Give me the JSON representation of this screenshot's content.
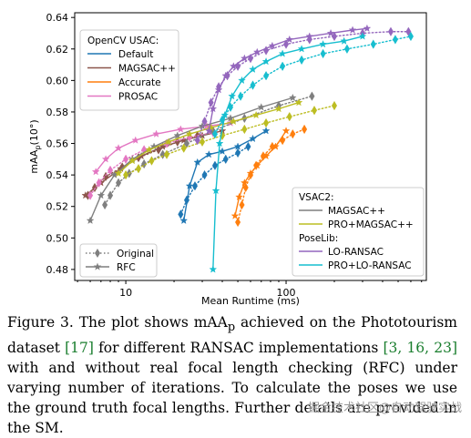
{
  "chart_data": {
    "type": "line",
    "title": "",
    "xlabel": "Mean Runtime (ms)",
    "ylabel": "mAA",
    "ylabel_sub": "p",
    "ylabel_suffix": "(10°)",
    "xscale": "log",
    "xlim": [
      4.8,
      750
    ],
    "ylim": [
      0.473,
      0.643
    ],
    "x_ticks": [
      10,
      100
    ],
    "x_tick_labels": [
      "10",
      "100"
    ],
    "y_ticks": [
      0.48,
      0.5,
      0.52,
      0.54,
      0.56,
      0.58,
      0.6,
      0.62,
      0.64
    ],
    "y_tick_labels": [
      "0.48",
      "0.50",
      "0.52",
      "0.54",
      "0.56",
      "0.58",
      "0.60",
      "0.62",
      "0.64"
    ],
    "grid": false,
    "legends": [
      {
        "placement": "top-left",
        "title": "OpenCV USAC:",
        "entries": [
          {
            "label": "Default",
            "color": "#1f77b4"
          },
          {
            "label": "MAGSAC++",
            "color": "#8c564b"
          },
          {
            "label": "Accurate",
            "color": "#ff7f0e"
          },
          {
            "label": "PROSAC",
            "color": "#e377c2"
          }
        ]
      },
      {
        "placement": "bottom-right",
        "groups": [
          {
            "title": "VSAC2:",
            "entries": [
              {
                "label": "MAGSAC++",
                "color": "#7f7f7f"
              },
              {
                "label": "PRO+MAGSAC++",
                "color": "#bcbd22"
              }
            ]
          },
          {
            "title": "PoseLib:",
            "entries": [
              {
                "label": "LO-RANSAC",
                "color": "#9467bd"
              },
              {
                "label": "PRO+LO-RANSAC",
                "color": "#17becf"
              }
            ]
          }
        ]
      },
      {
        "placement": "bottom-left",
        "entries": [
          {
            "label": "Original",
            "marker": "diamond",
            "dash": "dotted"
          },
          {
            "label": "RFC",
            "marker": "star",
            "dash": "solid"
          }
        ]
      }
    ],
    "series": [
      {
        "name": "Default",
        "variant": "Original",
        "color": "#1f77b4",
        "x": [
          22,
          24,
          27,
          31,
          36,
          42,
          50,
          58
        ],
        "y": [
          0.515,
          0.524,
          0.533,
          0.54,
          0.546,
          0.55,
          0.554,
          0.558
        ]
      },
      {
        "name": "Default",
        "variant": "RFC",
        "color": "#1f77b4",
        "x": [
          23,
          25,
          28,
          33,
          40,
          50,
          62,
          75
        ],
        "y": [
          0.511,
          0.533,
          0.548,
          0.553,
          0.555,
          0.558,
          0.563,
          0.568
        ]
      },
      {
        "name": "MAGSAC++",
        "variant": "Original",
        "color": "#8c564b",
        "x": [
          5.8,
          6.4,
          7.5,
          9.5,
          12,
          16,
          21,
          28
        ],
        "y": [
          0.527,
          0.532,
          0.539,
          0.545,
          0.551,
          0.556,
          0.561,
          0.565
        ]
      },
      {
        "name": "MAGSAC++",
        "variant": "RFC",
        "color": "#8c564b",
        "x": [
          5.6,
          7,
          9.3,
          12.5,
          17,
          23,
          30,
          40
        ],
        "y": [
          0.527,
          0.535,
          0.544,
          0.552,
          0.558,
          0.562,
          0.565,
          0.568
        ]
      },
      {
        "name": "Accurate",
        "variant": "Original",
        "color": "#ff7f0e",
        "x": [
          50,
          53,
          56,
          60,
          65,
          72,
          82,
          95,
          110,
          130
        ],
        "y": [
          0.51,
          0.521,
          0.532,
          0.54,
          0.546,
          0.552,
          0.558,
          0.562,
          0.566,
          0.569
        ]
      },
      {
        "name": "Accurate",
        "variant": "RFC",
        "color": "#ff7f0e",
        "x": [
          48,
          51,
          55,
          60,
          66,
          75,
          86,
          100
        ],
        "y": [
          0.514,
          0.526,
          0.535,
          0.541,
          0.546,
          0.552,
          0.558,
          0.568
        ]
      },
      {
        "name": "PROSAC",
        "variant": "Original",
        "color": "#e377c2",
        "x": [
          6,
          6.8,
          8,
          10,
          13,
          18,
          25,
          35
        ],
        "y": [
          0.527,
          0.535,
          0.543,
          0.55,
          0.556,
          0.56,
          0.564,
          0.567
        ]
      },
      {
        "name": "PROSAC",
        "variant": "RFC",
        "color": "#e377c2",
        "x": [
          6.5,
          7.5,
          9,
          11.5,
          15.5,
          22,
          32,
          45
        ],
        "y": [
          0.542,
          0.55,
          0.557,
          0.562,
          0.566,
          0.569,
          0.571,
          0.573
        ]
      },
      {
        "name": "VSAC2 MAGSAC++",
        "variant": "Original",
        "color": "#7f7f7f",
        "x": [
          7.4,
          8,
          9,
          10.5,
          13,
          17,
          24,
          35,
          55,
          90,
          145
        ],
        "y": [
          0.521,
          0.527,
          0.535,
          0.541,
          0.547,
          0.553,
          0.56,
          0.568,
          0.576,
          0.584,
          0.59
        ]
      },
      {
        "name": "VSAC2 MAGSAC++",
        "variant": "RFC",
        "color": "#7f7f7f",
        "x": [
          6,
          7,
          8.5,
          11,
          15,
          21,
          30,
          45,
          70,
          110
        ],
        "y": [
          0.511,
          0.527,
          0.54,
          0.55,
          0.558,
          0.565,
          0.571,
          0.576,
          0.583,
          0.589
        ]
      },
      {
        "name": "PRO+MAGSAC++",
        "variant": "Original",
        "color": "#bcbd22",
        "x": [
          10,
          12,
          14.5,
          18,
          23,
          30,
          40,
          55,
          75,
          105,
          150,
          200
        ],
        "y": [
          0.54,
          0.544,
          0.549,
          0.553,
          0.557,
          0.561,
          0.565,
          0.569,
          0.573,
          0.577,
          0.581,
          0.584
        ]
      },
      {
        "name": "PRO+MAGSAC++",
        "variant": "RFC",
        "color": "#bcbd22",
        "x": [
          9,
          11,
          14,
          18.5,
          25,
          34,
          47,
          65,
          90,
          120
        ],
        "y": [
          0.541,
          0.549,
          0.556,
          0.561,
          0.566,
          0.57,
          0.574,
          0.578,
          0.582,
          0.586
        ]
      },
      {
        "name": "LO-RANSAC",
        "variant": "Original",
        "color": "#9467bd",
        "x": [
          28,
          31,
          34,
          38,
          43,
          50,
          60,
          75,
          100,
          140,
          200,
          300,
          450,
          580
        ],
        "y": [
          0.562,
          0.574,
          0.586,
          0.596,
          0.603,
          0.609,
          0.614,
          0.619,
          0.623,
          0.626,
          0.628,
          0.63,
          0.631,
          0.631
        ]
      },
      {
        "name": "LO-RANSAC",
        "variant": "RFC",
        "color": "#9467bd",
        "x": [
          33,
          35,
          38,
          42,
          47,
          55,
          66,
          82,
          105,
          140,
          190,
          260,
          320
        ],
        "y": [
          0.568,
          0.582,
          0.594,
          0.603,
          0.609,
          0.614,
          0.618,
          0.622,
          0.626,
          0.628,
          0.63,
          0.632,
          0.633
        ]
      },
      {
        "name": "PRO+LO-RANSAC",
        "variant": "Original",
        "color": "#17becf",
        "x": [
          36,
          40,
          45,
          52,
          62,
          75,
          95,
          125,
          170,
          240,
          350,
          480,
          600
        ],
        "y": [
          0.566,
          0.575,
          0.583,
          0.59,
          0.597,
          0.603,
          0.609,
          0.613,
          0.617,
          0.62,
          0.623,
          0.626,
          0.628
        ]
      },
      {
        "name": "PRO+LO-RANSAC",
        "variant": "RFC",
        "color": "#17becf",
        "x": [
          35,
          36.5,
          38.5,
          41.5,
          46,
          53,
          62,
          75,
          95,
          125,
          170,
          230,
          300
        ],
        "y": [
          0.48,
          0.53,
          0.56,
          0.578,
          0.59,
          0.6,
          0.607,
          0.612,
          0.617,
          0.62,
          0.623,
          0.625,
          0.628
        ]
      }
    ]
  },
  "caption": {
    "part1": "Figure 3.  The plot shows mAA",
    "sub": "p",
    "part2": " achieved on the Phototourism dataset ",
    "cite1": "[17]",
    "part3": " for different RANSAC implementations ",
    "cite2": "[3, 16, 23]",
    "part4": " with and without real focal length checking (RFC) under varying number of iterations.  To calculate the poses we use the ground truth focal lengths. Further details are provided in the SM."
  },
  "watermark": "掘金技术社区@自动驾驶实战"
}
